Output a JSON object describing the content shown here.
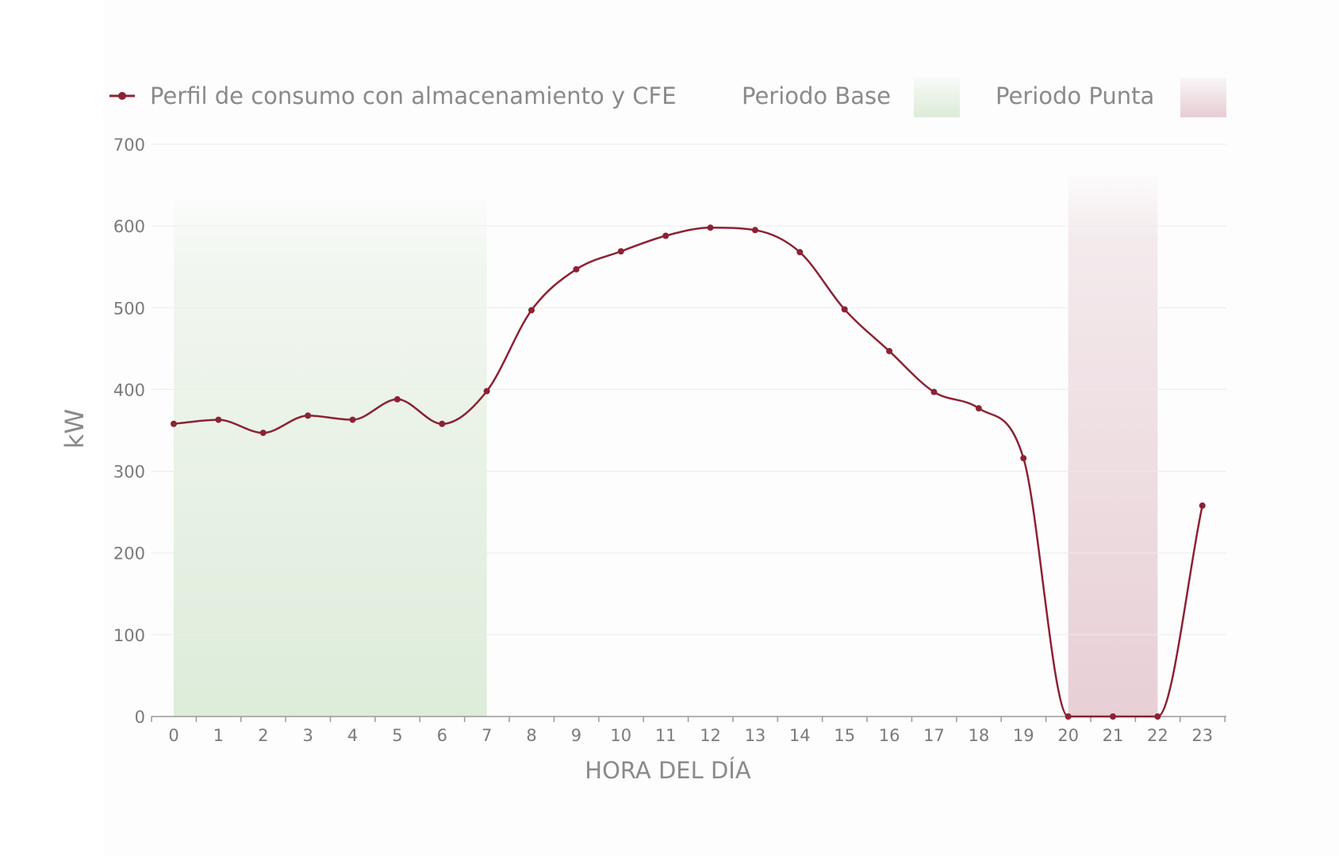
{
  "chart_data": {
    "type": "line",
    "categories": [
      "0",
      "1",
      "2",
      "3",
      "4",
      "5",
      "6",
      "7",
      "8",
      "9",
      "10",
      "11",
      "12",
      "13",
      "14",
      "15",
      "16",
      "17",
      "18",
      "19",
      "20",
      "21",
      "22",
      "23"
    ],
    "series": [
      {
        "name": "Perfil de consumo con almacenamiento y CFE",
        "values": [
          358,
          363,
          347,
          368,
          363,
          388,
          358,
          398,
          497,
          547,
          569,
          588,
          598,
          595,
          568,
          498,
          447,
          397,
          377,
          316,
          0,
          0,
          0,
          258
        ]
      }
    ],
    "bands": [
      {
        "name": "Periodo Base",
        "start_hour": 0,
        "end_hour": 7,
        "color": "#dcebd8"
      },
      {
        "name": "Periodo Punta",
        "start_hour": 20,
        "end_hour": 22,
        "color": "#e6cdd3"
      }
    ],
    "title": "",
    "xlabel": "HORA DEL DÍA",
    "ylabel": "kW",
    "ylim": [
      0,
      700
    ],
    "yticks": [
      0,
      100,
      200,
      300,
      400,
      500,
      600,
      700
    ],
    "grid": true,
    "legend_placement": "top",
    "colors": {
      "line": "#8b2234",
      "base_band": "#dcebd8",
      "punta_band": "#e6cdd3",
      "axis_text": "#8a8a8a",
      "grid": "#ececec"
    }
  }
}
